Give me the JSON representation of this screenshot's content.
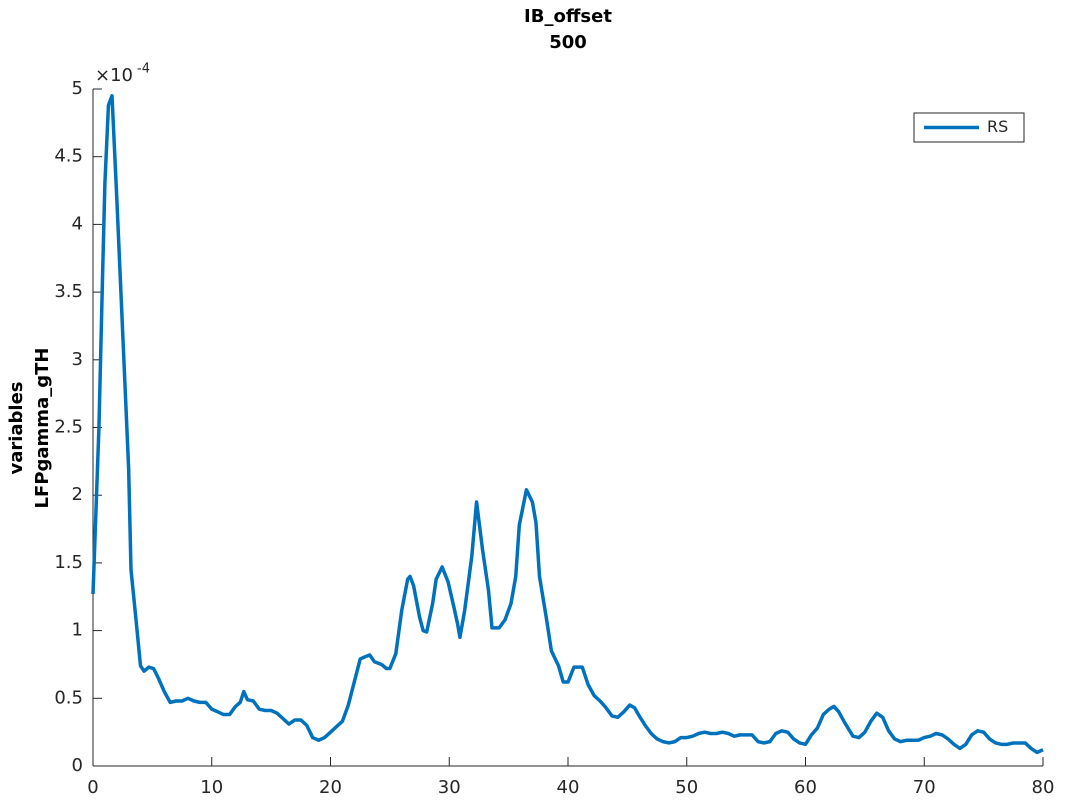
{
  "chart_data": {
    "type": "line",
    "title": [
      "IB_offset",
      "500"
    ],
    "y_label": [
      "variables",
      "LFPgamma_gTH"
    ],
    "y_multiplier": {
      "base": "×10",
      "exponent": "-4"
    },
    "xlim": [
      0,
      80
    ],
    "xticks": [
      0,
      10,
      20,
      30,
      40,
      50,
      60,
      70,
      80
    ],
    "ylim": [
      0,
      5
    ],
    "yticks": [
      0,
      0.5,
      1,
      1.5,
      2,
      2.5,
      3,
      3.5,
      4,
      4.5,
      5
    ],
    "grid": false,
    "legend_position": "upper-right",
    "x": [
      0,
      0.5,
      0.8,
      1.0,
      1.3,
      1.6,
      2.0,
      2.5,
      3.0,
      3.2,
      3.6,
      4.0,
      4.3,
      4.7,
      5.1,
      5.5,
      6.0,
      6.5,
      7.0,
      7.5,
      8.0,
      8.5,
      9.0,
      9.5,
      10.0,
      10.5,
      11.0,
      11.5,
      12.0,
      12.4,
      12.7,
      13.0,
      13.5,
      14.0,
      14.5,
      15.0,
      15.5,
      16.0,
      16.5,
      17.0,
      17.5,
      18.0,
      18.5,
      19.0,
      19.5,
      20.0,
      20.5,
      21.0,
      21.5,
      22.0,
      22.5,
      23.0,
      23.3,
      23.7,
      24.3,
      24.7,
      25.0,
      25.5,
      26.0,
      26.5,
      26.7,
      27.0,
      27.5,
      27.8,
      28.1,
      28.6,
      28.9,
      29.4,
      29.9,
      30.4,
      30.7,
      30.9,
      31.3,
      31.9,
      32.3,
      32.8,
      33.3,
      33.6,
      34.2,
      34.7,
      35.2,
      35.6,
      35.9,
      36.5,
      37.0,
      37.3,
      37.6,
      38.2,
      38.6,
      39.2,
      39.6,
      40.0,
      40.5,
      41.2,
      41.7,
      42.2,
      42.7,
      43.2,
      43.7,
      44.2,
      44.7,
      45.2,
      45.6,
      46.0,
      46.5,
      47.0,
      47.5,
      48.0,
      48.5,
      49.0,
      49.5,
      50.0,
      50.5,
      51.0,
      51.5,
      52.0,
      52.5,
      53.0,
      53.5,
      54.0,
      54.5,
      55.0,
      55.5,
      56.0,
      56.5,
      57.0,
      57.5,
      58.0,
      58.5,
      59.0,
      59.5,
      60.0,
      60.5,
      61.0,
      61.5,
      62.0,
      62.4,
      62.8,
      63.3,
      64.0,
      64.5,
      65.0,
      65.5,
      66.0,
      66.5,
      67.0,
      67.5,
      68.0,
      68.5,
      69.0,
      69.5,
      70.0,
      70.5,
      71.0,
      71.5,
      72.0,
      72.5,
      73.0,
      73.5,
      74.0,
      74.5,
      75.0,
      75.5,
      76.0,
      76.5,
      77.0,
      77.5,
      78.0,
      78.5,
      79.0,
      79.5,
      80.0
    ],
    "series": [
      {
        "name": "RS",
        "color": "#0072bd",
        "values": [
          1.27,
          2.5,
          3.6,
          4.3,
          4.88,
          4.95,
          4.2,
          3.2,
          2.2,
          1.45,
          1.1,
          0.74,
          0.7,
          0.73,
          0.72,
          0.65,
          0.55,
          0.47,
          0.48,
          0.48,
          0.5,
          0.48,
          0.47,
          0.47,
          0.42,
          0.4,
          0.38,
          0.38,
          0.44,
          0.47,
          0.55,
          0.49,
          0.48,
          0.42,
          0.41,
          0.41,
          0.39,
          0.35,
          0.31,
          0.34,
          0.34,
          0.3,
          0.21,
          0.19,
          0.21,
          0.25,
          0.29,
          0.33,
          0.45,
          0.62,
          0.79,
          0.81,
          0.82,
          0.77,
          0.75,
          0.72,
          0.72,
          0.83,
          1.15,
          1.38,
          1.4,
          1.33,
          1.1,
          1.0,
          0.99,
          1.2,
          1.38,
          1.47,
          1.36,
          1.17,
          1.05,
          0.95,
          1.15,
          1.55,
          1.95,
          1.6,
          1.3,
          1.02,
          1.02,
          1.08,
          1.2,
          1.4,
          1.78,
          2.04,
          1.95,
          1.8,
          1.4,
          1.08,
          0.85,
          0.74,
          0.62,
          0.62,
          0.73,
          0.73,
          0.6,
          0.52,
          0.48,
          0.43,
          0.37,
          0.36,
          0.4,
          0.45,
          0.43,
          0.37,
          0.3,
          0.24,
          0.2,
          0.18,
          0.17,
          0.18,
          0.21,
          0.21,
          0.22,
          0.24,
          0.25,
          0.24,
          0.24,
          0.25,
          0.24,
          0.22,
          0.23,
          0.23,
          0.23,
          0.18,
          0.17,
          0.18,
          0.24,
          0.26,
          0.25,
          0.2,
          0.17,
          0.16,
          0.23,
          0.28,
          0.38,
          0.42,
          0.44,
          0.4,
          0.32,
          0.22,
          0.21,
          0.25,
          0.33,
          0.39,
          0.36,
          0.26,
          0.2,
          0.18,
          0.19,
          0.19,
          0.19,
          0.21,
          0.22,
          0.24,
          0.23,
          0.2,
          0.16,
          0.13,
          0.16,
          0.23,
          0.26,
          0.25,
          0.2,
          0.17,
          0.16,
          0.16,
          0.17,
          0.17,
          0.17,
          0.13,
          0.1,
          0.12
        ]
      }
    ]
  }
}
